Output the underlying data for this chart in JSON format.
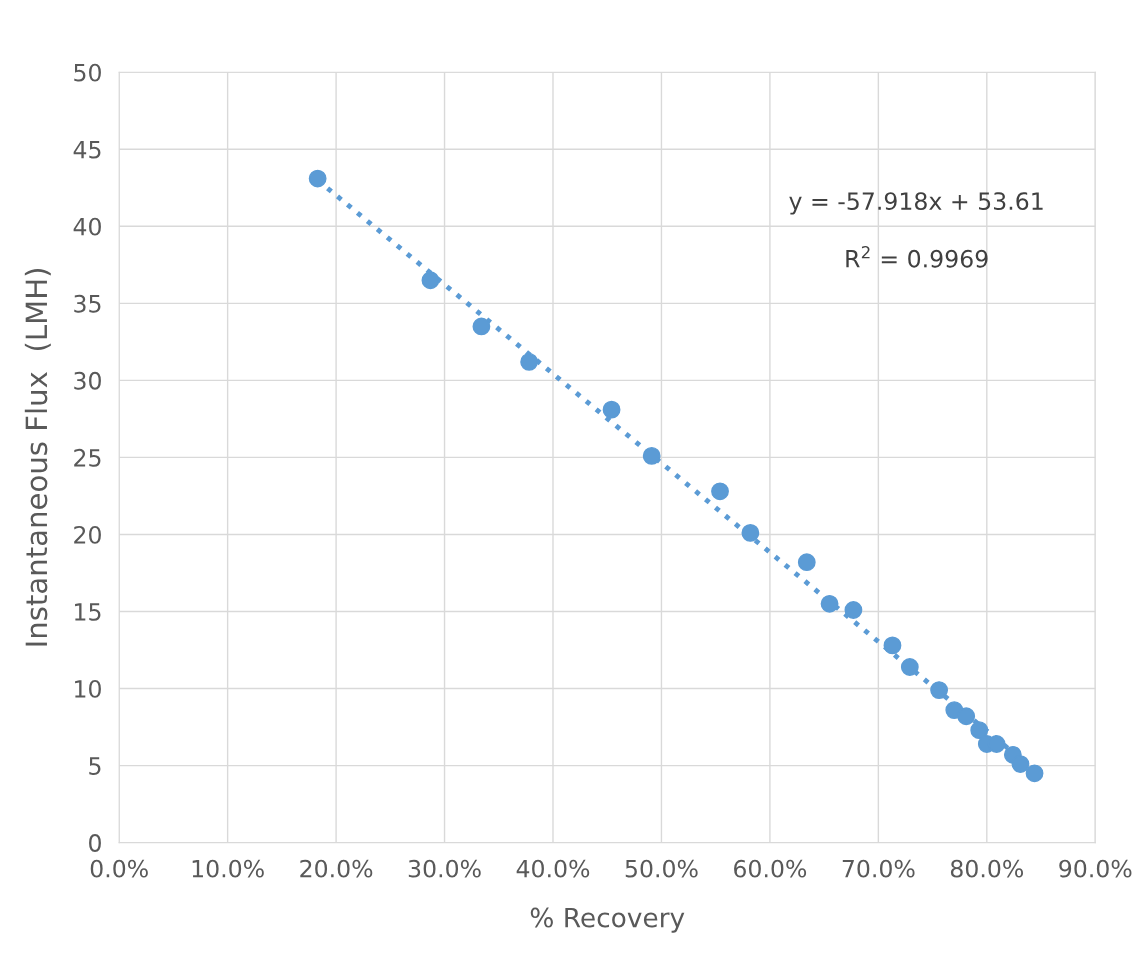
{
  "chart_data": {
    "type": "scatter",
    "xlabel": "% Recovery",
    "ylabel": "Instantaneous Flux  (LMH)",
    "series": [
      {
        "color": "#5b9bd5",
        "marker": "circle",
        "x": [
          18.3,
          28.7,
          33.4,
          37.8,
          45.4,
          49.1,
          55.4,
          58.2,
          63.4,
          65.5,
          67.7,
          71.3,
          72.9,
          75.6,
          77.0,
          78.1,
          79.3,
          80.0,
          80.9,
          82.4,
          83.1,
          84.4
        ],
        "values": [
          43.1,
          36.5,
          33.5,
          31.2,
          28.1,
          25.1,
          22.8,
          20.1,
          18.2,
          15.5,
          15.1,
          12.8,
          11.4,
          9.9,
          8.6,
          8.2,
          7.3,
          6.4,
          6.4,
          5.7,
          5.1,
          4.5
        ]
      },
      {
        "type": "line",
        "color": "#5b9bd5",
        "line_style": "dotted",
        "marker": "none",
        "x": [
          18.3,
          84.4
        ],
        "values": [
          43.0,
          4.7
        ]
      }
    ],
    "annotations": [
      "y = -57.918x + 53.61",
      "R$^{2}$ = 0.9969"
    ],
    "xlim": [
      0,
      90
    ],
    "xticks": [
      {
        "value": 0,
        "label": "0.0%"
      },
      {
        "value": 10,
        "label": "10.0%"
      },
      {
        "value": 20,
        "label": "20.0%"
      },
      {
        "value": 30,
        "label": "30.0%"
      },
      {
        "value": 40,
        "label": "40.0%"
      },
      {
        "value": 50,
        "label": "50.0%"
      },
      {
        "value": 60,
        "label": "60.0%"
      },
      {
        "value": 70,
        "label": "70.0%"
      },
      {
        "value": 80,
        "label": "80.0%"
      },
      {
        "value": 90,
        "label": "90.0%"
      }
    ],
    "ylim": [
      0,
      50
    ],
    "yticks": [
      0,
      5,
      10,
      15,
      20,
      25,
      30,
      35,
      40,
      45,
      50
    ],
    "grid": true
  }
}
